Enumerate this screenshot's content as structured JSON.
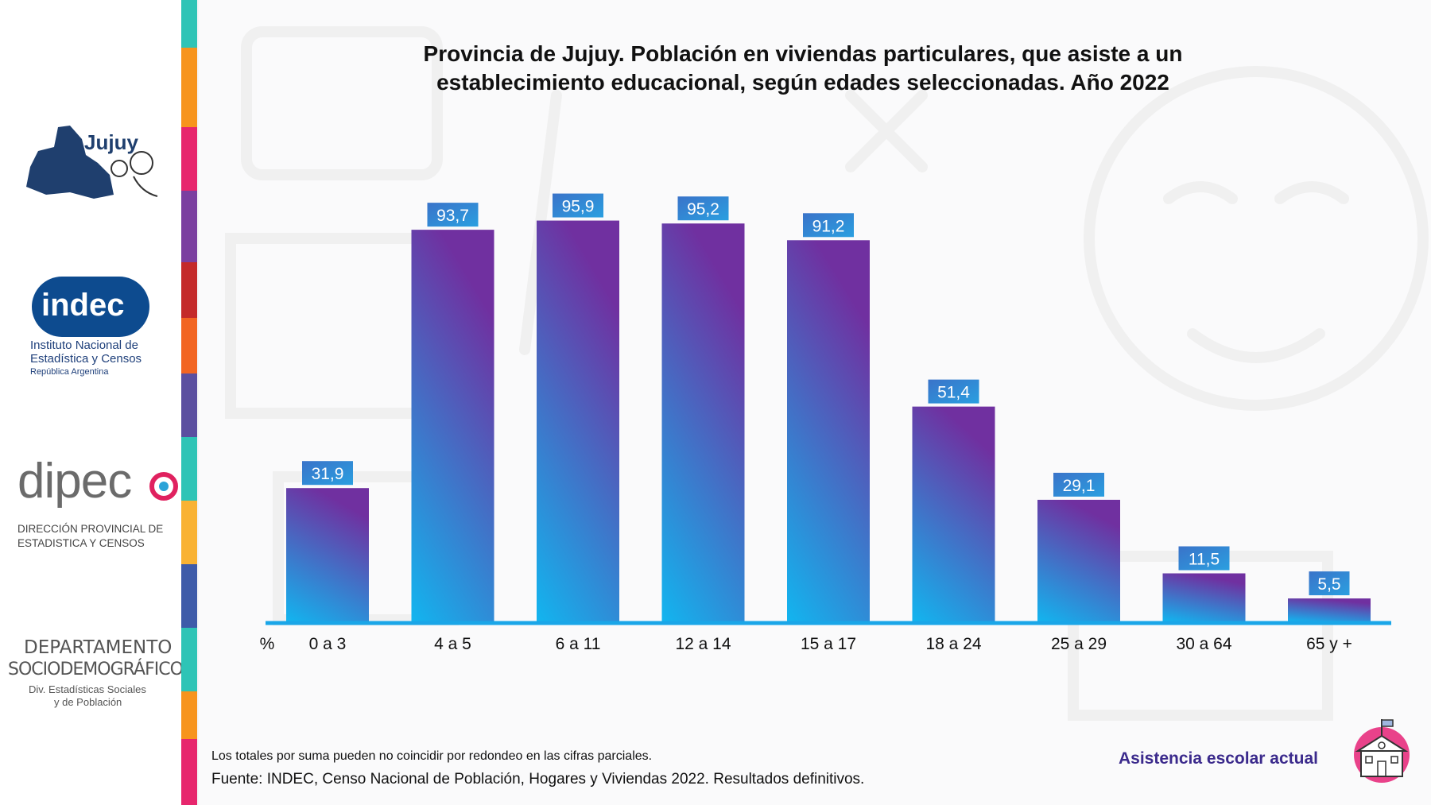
{
  "title_line1": "Provincia de Jujuy. Población en viviendas particulares, que asiste a un",
  "title_line2": "establecimiento educacional, según edades seleccionadas. Año 2022",
  "logos": {
    "jujuy": "Jujuy",
    "indec": "indec",
    "indec_line1": "Instituto Nacional de",
    "indec_line2": "Estadística y Censos",
    "indec_line3": "República Argentina",
    "dipec": "dipec",
    "dipec_line1": "DIRECCIÓN PROVINCIAL DE",
    "dipec_line2": "ESTADISTICA Y CENSOS",
    "depto_line1": "DEPARTAMENTO",
    "depto_line2": "SOCIODEMOGRÁFICO",
    "depto_line3": "Div. Estadísticas Sociales",
    "depto_line4": "y de Población"
  },
  "footer": {
    "note": "Los totales por suma pueden no coincidir por redondeo en las cifras parciales.",
    "source": "Fuente: INDEC, Censo Nacional de Población, Hogares y Viviendas 2022. Resultados definitivos.",
    "topic": "Asistencia escolar actual"
  },
  "colors": {
    "bar_top": "#7030a0",
    "bar_bottom": "#12b5ef",
    "axis": "#1aa6e8",
    "label_bg_top": "#3a73c9",
    "label_bg_bottom": "#2a9fe0",
    "topic": "#3b2a8c"
  },
  "chart_data": {
    "type": "bar",
    "title": "Provincia de Jujuy. Población en viviendas particulares, que asiste a un establecimiento educacional, según edades seleccionadas. Año 2022",
    "unit_label": "%",
    "categories": [
      "0 a 3",
      "4 a 5",
      "6 a 11",
      "12 a 14",
      "15 a 17",
      "18 a 24",
      "25 a 29",
      "30 a 64",
      "65 y +"
    ],
    "values": [
      31.9,
      93.7,
      95.9,
      95.2,
      91.2,
      51.4,
      29.1,
      11.5,
      5.5
    ],
    "value_labels": [
      "31,9",
      "93,7",
      "95,9",
      "95,2",
      "91,2",
      "51,4",
      "29,1",
      "11,5",
      "5,5"
    ],
    "ylim": [
      0,
      100
    ],
    "grid": false,
    "legend": "none"
  }
}
